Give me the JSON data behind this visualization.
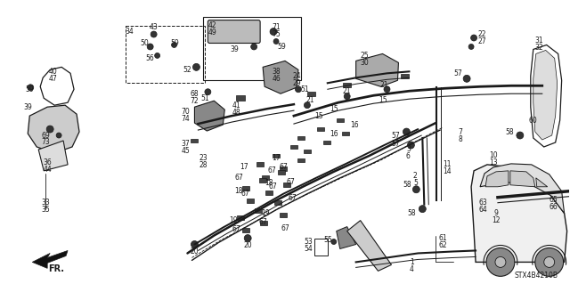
{
  "bg_color": "#ffffff",
  "line_color": "#1a1a1a",
  "text_color": "#1a1a1a",
  "diagram_code": "STX4B4210B",
  "fig_w": 6.4,
  "fig_h": 3.19,
  "dpi": 100
}
